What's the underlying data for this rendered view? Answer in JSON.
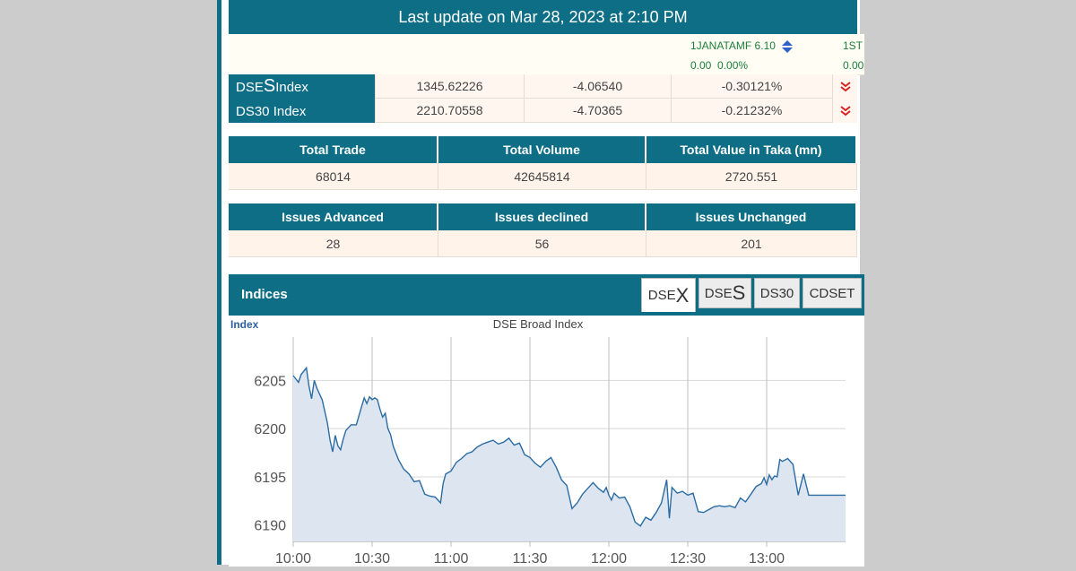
{
  "update_bar": {
    "text": "Last update on Mar 28, 2023 at 2:10 PM"
  },
  "ticker": {
    "items": [
      {
        "name": "1JANATAMF 6.10",
        "change": "0.00",
        "pct": "0.00%",
        "icon": "up-down-arrow-icon"
      },
      {
        "name": "1ST",
        "change": "0.00",
        "pct": ""
      }
    ]
  },
  "indices_rows": [
    {
      "name_prefix": "DSE",
      "name_big": "S",
      "name_suffix": " Index",
      "value": "1345.62226",
      "change": "-4.06540",
      "pct": "-0.30121%",
      "icon": "double-chevron-down-icon"
    },
    {
      "name_prefix": "DS30 Index",
      "name_big": "",
      "name_suffix": "",
      "value": "2210.70558",
      "change": "-4.70365",
      "pct": "-0.21232%",
      "icon": "double-chevron-down-icon"
    }
  ],
  "trade_stats": {
    "headers": [
      "Total Trade",
      "Total Volume",
      "Total Value in Taka (mn)"
    ],
    "values": [
      "68014",
      "42645814",
      "2720.551"
    ]
  },
  "issue_stats": {
    "headers": [
      "Issues Advanced",
      "Issues declined",
      "Issues Unchanged"
    ],
    "values": [
      "28",
      "56",
      "201"
    ]
  },
  "indices_section": {
    "title": "Indices",
    "tabs": [
      {
        "prefix": "DSE",
        "big": "X",
        "active": true
      },
      {
        "prefix": "DSE",
        "big": "S",
        "active": false
      },
      {
        "prefix": "DS30",
        "big": "",
        "active": false
      },
      {
        "prefix": "CDSET",
        "big": "",
        "active": false
      }
    ]
  },
  "colors": {
    "accent": "#0e6e85",
    "line": "#2b6ca3",
    "fill": "#dde6f0",
    "down": "#d62222",
    "ticker_text": "#1b7f3b"
  },
  "chart_data": {
    "type": "area",
    "title": "DSE Broad Index",
    "ylabel": "Index",
    "xlabel": "",
    "x_ticks": [
      "10:00",
      "10:30",
      "11:00",
      "11:30",
      "12:00",
      "12:30",
      "13:00"
    ],
    "y_ticks": [
      6190,
      6195,
      6200,
      6205
    ],
    "ylim": [
      6188.3,
      6209.5
    ],
    "xlim_minutes": [
      0,
      210
    ],
    "grid": true,
    "series": [
      {
        "x_minutes": [
          0,
          2,
          3,
          5,
          6,
          7,
          8,
          9,
          10,
          11,
          13,
          14,
          15,
          16,
          17,
          18,
          19,
          20,
          22,
          24,
          26,
          27,
          28,
          29,
          30,
          31,
          32,
          33,
          34,
          35,
          36,
          37,
          38,
          39,
          40,
          42,
          44,
          46,
          48,
          50,
          52,
          54,
          56,
          57,
          58,
          60,
          62,
          64,
          66,
          68,
          70,
          72,
          74,
          76,
          78,
          80,
          82,
          84,
          86,
          88,
          90,
          92,
          94,
          96,
          98,
          100,
          102,
          104,
          106,
          108,
          110,
          112,
          114,
          116,
          118,
          119,
          120,
          121,
          122,
          124,
          126,
          128,
          130,
          132,
          134,
          136,
          138,
          140,
          142,
          143,
          144,
          146,
          148,
          150,
          152,
          154,
          156,
          158,
          160,
          162,
          164,
          166,
          168,
          170,
          172,
          174,
          176,
          178,
          179,
          180,
          181,
          182,
          183,
          184,
          185,
          186,
          188,
          190,
          192,
          194,
          196,
          210
        ],
        "values": [
          6205.5,
          6204.8,
          6205.6,
          6206.3,
          6204.4,
          6203.1,
          6205.0,
          6204.2,
          6203.6,
          6203.0,
          6200.6,
          6198.8,
          6197.6,
          6199.3,
          6198.2,
          6197.8,
          6198.9,
          6199.8,
          6200.4,
          6200.4,
          6202.3,
          6203.2,
          6202.6,
          6203.3,
          6203.0,
          6203.2,
          6203.0,
          6202.0,
          6201.2,
          6201.6,
          6200.0,
          6199.4,
          6198.2,
          6197.5,
          6196.8,
          6195.8,
          6195.3,
          6194.5,
          6194.6,
          6193.2,
          6193.0,
          6192.9,
          6192.3,
          6194.3,
          6195.3,
          6195.6,
          6196.5,
          6196.9,
          6197.4,
          6197.6,
          6198.1,
          6198.4,
          6198.6,
          6198.8,
          6198.4,
          6198.6,
          6199.0,
          6198.3,
          6198.5,
          6197.3,
          6197.0,
          6196.4,
          6196.0,
          6196.6,
          6197.0,
          6196.0,
          6194.7,
          6194.1,
          6191.7,
          6192.3,
          6193.2,
          6193.8,
          6194.4,
          6193.8,
          6193.4,
          6193.9,
          6193.1,
          6192.6,
          6193.3,
          6192.8,
          6192.9,
          6191.9,
          6190.3,
          6189.9,
          6190.8,
          6190.5,
          6191.3,
          6192.3,
          6194.7,
          6190.7,
          6193.9,
          6193.3,
          6193.5,
          6193.1,
          6193.3,
          6191.4,
          6191.3,
          6191.6,
          6191.9,
          6192.0,
          6191.9,
          6192.0,
          6191.8,
          6192.8,
          6192.4,
          6193.2,
          6194.0,
          6194.3,
          6194.9,
          6194.2,
          6195.2,
          6194.7,
          6195.1,
          6195.0,
          6196.8,
          6196.6,
          6196.9,
          6196.3,
          6193.1,
          6195.3,
          6193.1,
          6193.1
        ]
      }
    ]
  }
}
